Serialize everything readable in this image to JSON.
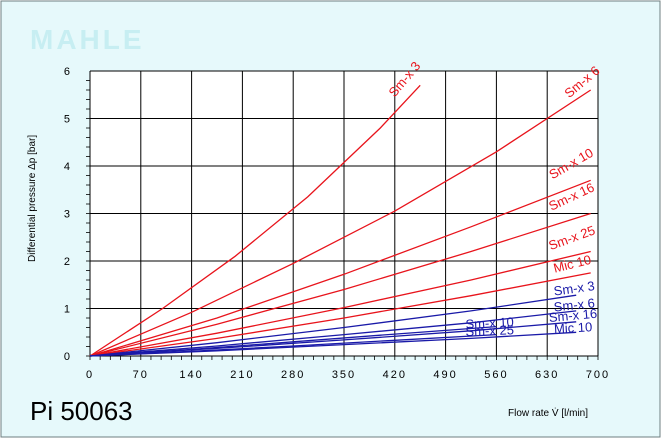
{
  "branding": {
    "logo_text": "MAHLE",
    "product": "Pi 50063"
  },
  "colors": {
    "background": "#e6f9fb",
    "plot_background": "#ffffff",
    "red_series": "#e8141c",
    "blue_series": "#1a1aa8",
    "grid": "#000000",
    "logo": "#c7eef2"
  },
  "chart_data": {
    "type": "line",
    "xlabel": "Flow rate V̇ [l/min]",
    "ylabel": "Differential pressure Δp [bar]",
    "xlim": [
      0,
      700
    ],
    "ylim": [
      0,
      6
    ],
    "xticks": [
      0,
      70,
      140,
      210,
      280,
      350,
      420,
      490,
      560,
      630,
      700
    ],
    "yticks": [
      0,
      1,
      2,
      3,
      4,
      5,
      6
    ],
    "grid": true,
    "series": [
      {
        "name": "Sm-x 3",
        "color": "#e8141c",
        "x": [
          0,
          100,
          200,
          300,
          400,
          455
        ],
        "y": [
          0,
          1.0,
          2.1,
          3.35,
          4.8,
          5.7
        ]
      },
      {
        "name": "Sm-x 6",
        "color": "#e8141c",
        "x": [
          0,
          140,
          280,
          420,
          560,
          690
        ],
        "y": [
          0,
          0.92,
          1.95,
          3.05,
          4.3,
          5.6
        ]
      },
      {
        "name": "Sm-x 10",
        "color": "#e8141c",
        "x": [
          0,
          175,
          350,
          525,
          690
        ],
        "y": [
          0,
          0.8,
          1.72,
          2.72,
          3.7
        ]
      },
      {
        "name": "Sm-x 16",
        "color": "#e8141c",
        "x": [
          0,
          175,
          350,
          525,
          690
        ],
        "y": [
          0,
          0.67,
          1.4,
          2.2,
          3.0
        ]
      },
      {
        "name": "Sm-x 25",
        "color": "#e8141c",
        "x": [
          0,
          175,
          350,
          525,
          690
        ],
        "y": [
          0,
          0.48,
          1.02,
          1.6,
          2.2
        ]
      },
      {
        "name": "Mic 10",
        "color": "#e8141c",
        "x": [
          0,
          175,
          350,
          525,
          690
        ],
        "y": [
          0,
          0.37,
          0.8,
          1.27,
          1.75
        ]
      },
      {
        "name": "Sm-x 3",
        "color": "#1a1aa8",
        "x": [
          0,
          175,
          350,
          525,
          670
        ],
        "y": [
          0,
          0.28,
          0.6,
          0.95,
          1.28
        ]
      },
      {
        "name": "Sm-x 6",
        "color": "#1a1aa8",
        "x": [
          0,
          175,
          350,
          525,
          670
        ],
        "y": [
          0,
          0.21,
          0.45,
          0.7,
          0.95
        ]
      },
      {
        "name": "Sm-x 10",
        "color": "#1a1aa8",
        "x": [
          0,
          140,
          280,
          420,
          560
        ],
        "y": [
          0,
          0.14,
          0.3,
          0.46,
          0.62
        ]
      },
      {
        "name": "Sm-x 16",
        "color": "#1a1aa8",
        "x": [
          0,
          175,
          350,
          525,
          670
        ],
        "y": [
          0,
          0.16,
          0.34,
          0.53,
          0.72
        ]
      },
      {
        "name": "Sm-x 25",
        "color": "#1a1aa8",
        "x": [
          0,
          140,
          280,
          420,
          560
        ],
        "y": [
          0,
          0.1,
          0.21,
          0.33,
          0.45
        ]
      },
      {
        "name": "Mic 10",
        "color": "#1a1aa8",
        "x": [
          0,
          175,
          350,
          525,
          670
        ],
        "y": [
          0,
          0.11,
          0.24,
          0.37,
          0.5
        ]
      }
    ],
    "annotations": [
      {
        "text": "Sm-x 3",
        "color": "#e8141c",
        "x": 438,
        "y": 5.77,
        "angle": -50
      },
      {
        "text": "Sm-x 6",
        "color": "#e8141c",
        "x": 682,
        "y": 5.7,
        "angle": -40
      },
      {
        "text": "Sm-x 10",
        "color": "#e8141c",
        "x": 666,
        "y": 3.97,
        "angle": -30
      },
      {
        "text": "Sm-x 16",
        "color": "#e8141c",
        "x": 666,
        "y": 3.27,
        "angle": -25
      },
      {
        "text": "Sm-x 25",
        "color": "#e8141c",
        "x": 666,
        "y": 2.4,
        "angle": -20
      },
      {
        "text": "Mic 10",
        "color": "#e8141c",
        "x": 666,
        "y": 1.85,
        "angle": -14
      },
      {
        "text": "Sm-x 3",
        "color": "#1a1aa8",
        "x": 668,
        "y": 1.33,
        "angle": -8
      },
      {
        "text": "Sm-x 6",
        "color": "#1a1aa8",
        "x": 668,
        "y": 0.98,
        "angle": -6
      },
      {
        "text": "Sm-x 16",
        "color": "#1a1aa8",
        "x": 666,
        "y": 0.76,
        "angle": -5
      },
      {
        "text": "Mic 10",
        "color": "#1a1aa8",
        "x": 666,
        "y": 0.5,
        "angle": -3
      },
      {
        "text": "Sm-x 10",
        "color": "#1a1aa8",
        "x": 551,
        "y": 0.6,
        "angle": -3
      },
      {
        "text": "Sm-x 25",
        "color": "#1a1aa8",
        "x": 551,
        "y": 0.44,
        "angle": -2
      }
    ]
  }
}
